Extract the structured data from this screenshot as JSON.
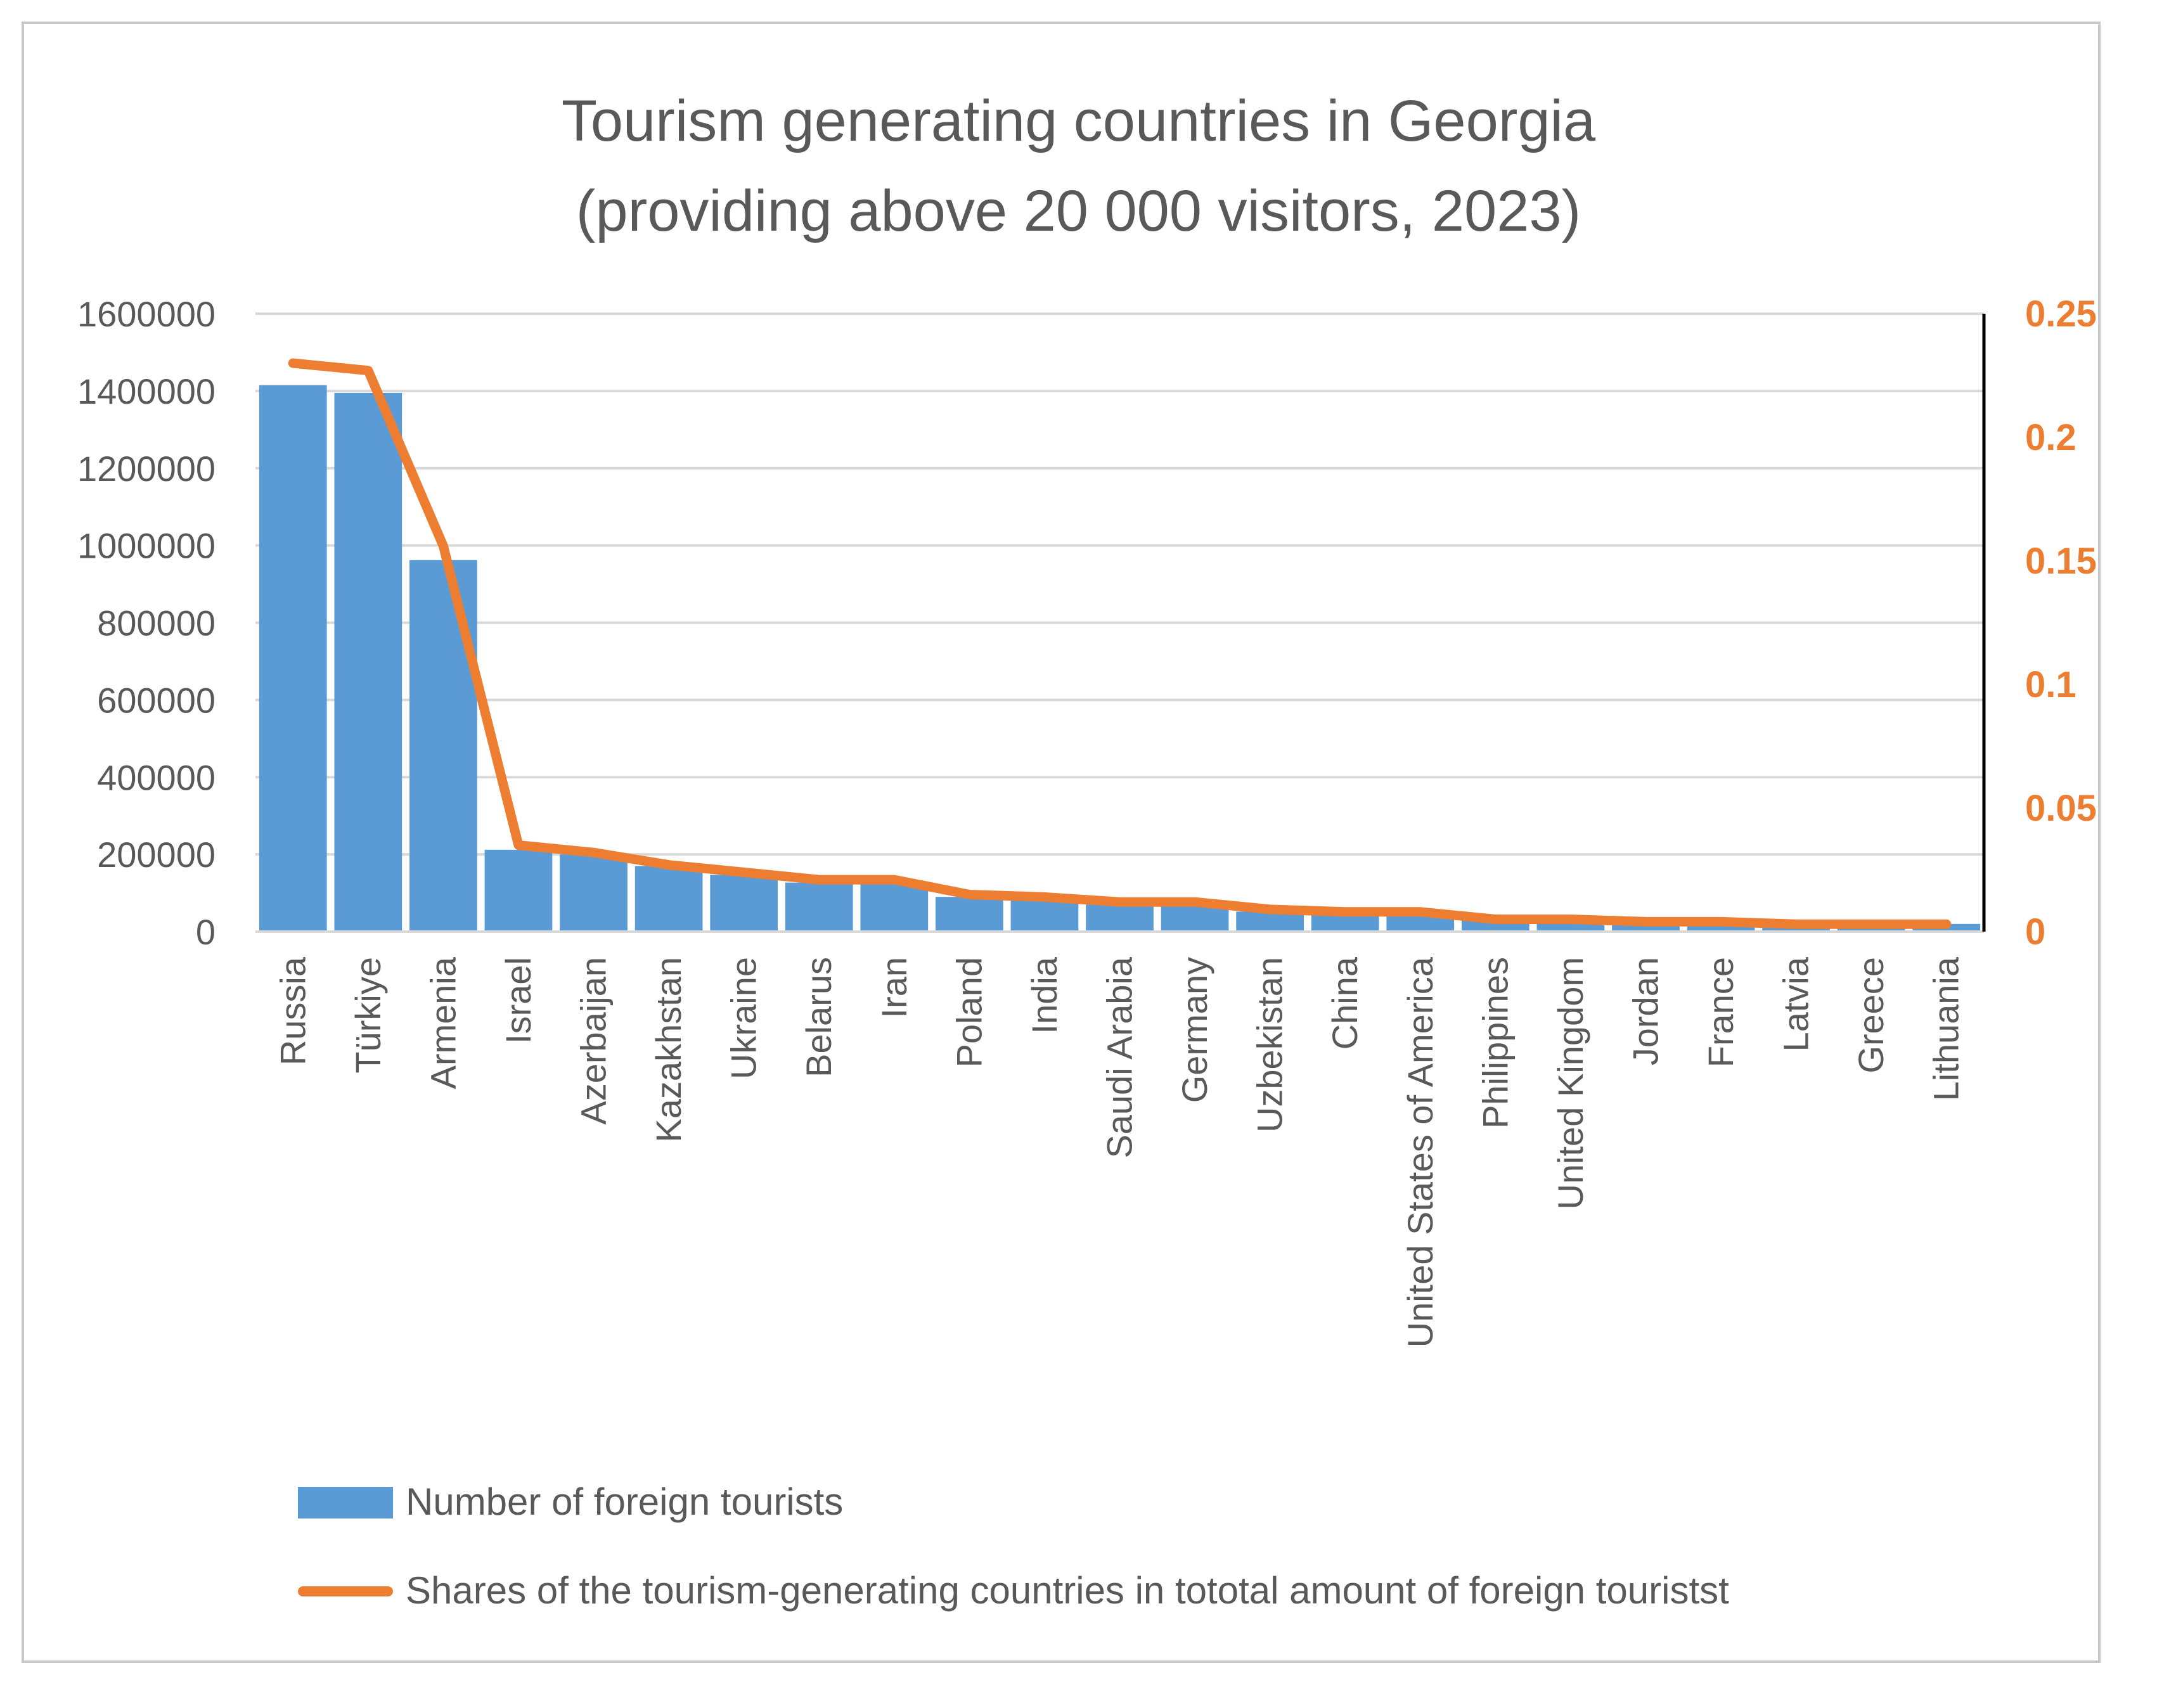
{
  "chart_data": {
    "type": "bar",
    "title_lines": [
      "Tourism generating countries in Georgia",
      "(providing above 20 000 visitors, 2023)"
    ],
    "categories": [
      "Russia",
      "Türkiye",
      "Armenia",
      "Israel",
      "Azerbaijan",
      "Kazakhstan",
      "Ukraine",
      "Belarus",
      "Iran",
      "Poland",
      "India",
      "Saudi Arabia",
      "Germany",
      "Uzbekistan",
      "China",
      "United States of America",
      "Philippines",
      "United Kingdom",
      "Jordan",
      "France",
      "Latvia",
      "Greece",
      "Lithuania"
    ],
    "series": [
      {
        "name": "Number of foreign tourists",
        "type": "bar",
        "axis": "left",
        "color": "#5b9bd5",
        "values": [
          1415000,
          1395000,
          962000,
          212000,
          200000,
          170000,
          147000,
          127000,
          127000,
          90000,
          82000,
          70000,
          68000,
          52000,
          47000,
          45000,
          32000,
          30000,
          25000,
          24000,
          20000,
          20000,
          20000
        ]
      },
      {
        "name": "Shares of the tourism-generating countries in tototal amount of foreign touristst",
        "type": "line",
        "axis": "right",
        "color": "#ed7d31",
        "values": [
          0.23,
          0.227,
          0.156,
          0.035,
          0.032,
          0.027,
          0.024,
          0.021,
          0.021,
          0.015,
          0.014,
          0.012,
          0.012,
          0.009,
          0.008,
          0.008,
          0.005,
          0.005,
          0.004,
          0.004,
          0.003,
          0.003,
          0.003
        ]
      }
    ],
    "y_left": {
      "min": 0,
      "max": 1600000,
      "ticks": [
        "0",
        "200000",
        "400000",
        "600000",
        "800000",
        "1000000",
        "1200000",
        "1400000",
        "1600000"
      ]
    },
    "y_right": {
      "min": 0,
      "max": 0.25,
      "ticks": [
        "0",
        "0.05",
        "0.1",
        "0.15",
        "0.2",
        "0.25"
      ]
    },
    "gridlines": true,
    "legend_position": "bottom-left"
  }
}
